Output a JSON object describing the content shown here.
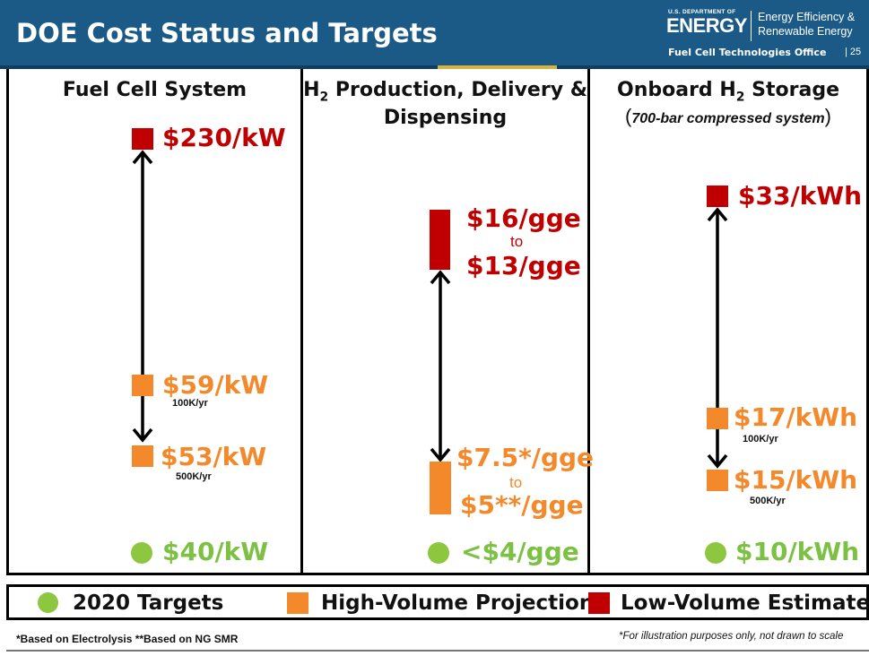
{
  "header": {
    "title": "DOE Cost Status and Targets",
    "logo_small": "U.S. DEPARTMENT OF",
    "logo_energy": "ENERGY",
    "logo_ee_line1": "Energy Efficiency &",
    "logo_ee_line2": "Renewable Energy",
    "office": "Fuel Cell Technologies Office",
    "page": "| 25"
  },
  "columns": [
    {
      "title": "Fuel Cell System",
      "low_volume": "$230/kW",
      "high_volume_1": "$59/kW",
      "high_volume_1_rate": "100K/yr",
      "high_volume_2": "$53/kW",
      "high_volume_2_rate": "500K/yr",
      "target": "$40/kW"
    },
    {
      "title_part1": "H",
      "title_sub": "2",
      "title_part2": " Production, Delivery &",
      "title_line2": "Dispensing",
      "low_volume_1": "$16/gge",
      "low_volume_to": "to",
      "low_volume_2": "$13/gge",
      "high_volume_1": "$7.5*/gge",
      "high_volume_to": "to",
      "high_volume_2": "$5**/gge",
      "target": "<$4/gge"
    },
    {
      "title_part1": "Onboard H",
      "title_sub": "2",
      "title_part2": " Storage",
      "subtitle": "700-bar compressed system",
      "low_volume": "$33/kWh",
      "high_volume_1": "$17/kWh",
      "high_volume_1_rate": "100K/yr",
      "high_volume_2": "$15/kWh",
      "high_volume_2_rate": "500K/yr",
      "target": "$10/kWh"
    }
  ],
  "legend": {
    "targets": "2020 Targets",
    "high_volume": "High-Volume Projection",
    "low_volume": "Low-Volume Estimate"
  },
  "colors": {
    "header_blue": "#1b5a86",
    "low_volume_red": "#c00000",
    "high_volume_orange": "#f4892b",
    "target_green": "#8dc63f"
  },
  "footnotes": {
    "left": "*Based on Electrolysis  **Based on NG SMR",
    "right": "*For illustration purposes only, not drawn to scale"
  }
}
